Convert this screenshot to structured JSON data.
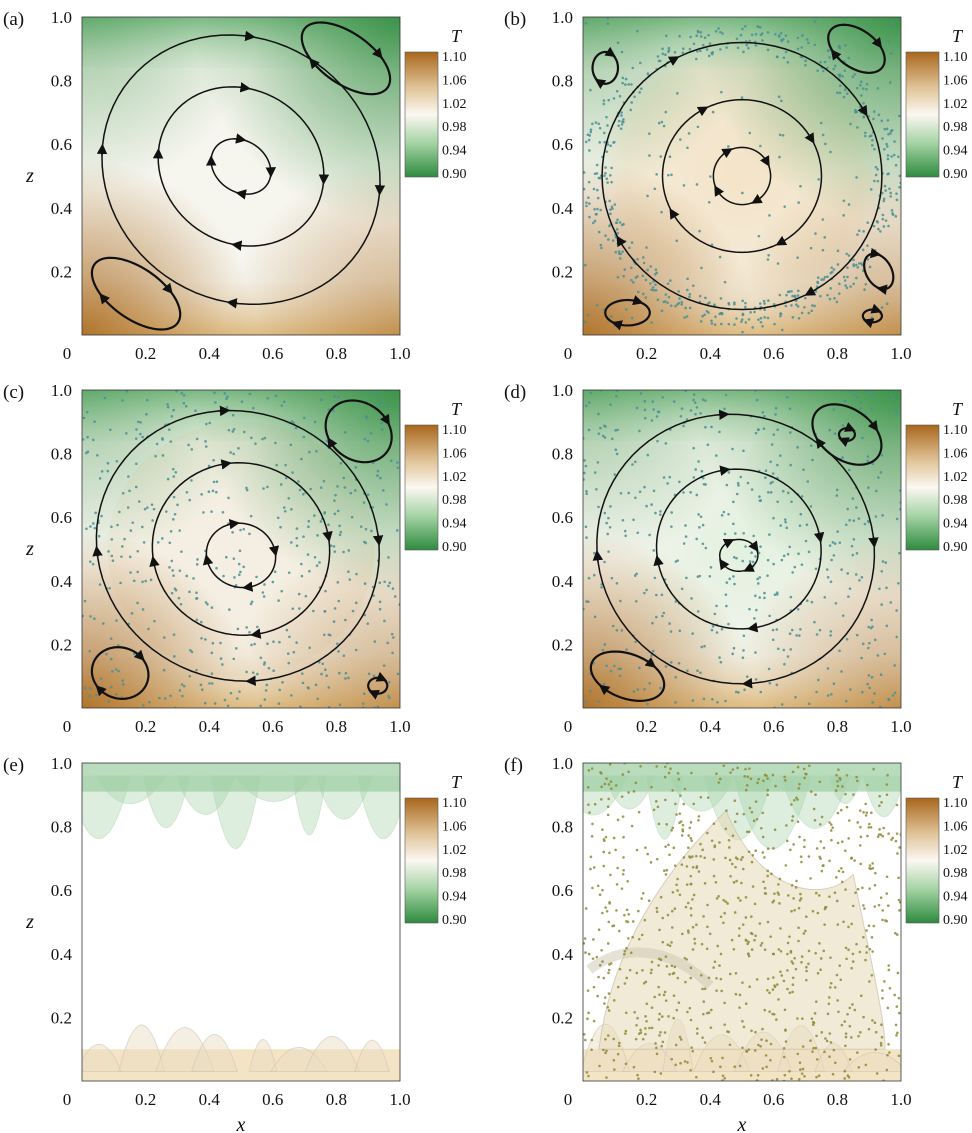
{
  "chart_data": [
    {
      "panel": "(a)",
      "type": "contour",
      "xlim": [
        0,
        1
      ],
      "ylim": [
        0,
        1
      ],
      "x_ticks": [
        "0",
        "0.2",
        "0.4",
        "0.6",
        "0.8",
        "1.0"
      ],
      "y_ticks": [
        "0.2",
        "0.4",
        "0.6",
        "0.8",
        "1.0"
      ],
      "ylabel": "z",
      "xlabel": "",
      "colorbar": {
        "title": "T",
        "ticks": [
          "1.10",
          "1.06",
          "1.02",
          "0.98",
          "0.94",
          "0.90"
        ],
        "range": [
          0.9,
          1.1
        ]
      },
      "particles": false,
      "streamlines": true
    },
    {
      "panel": "(b)",
      "type": "contour",
      "xlim": [
        0,
        1
      ],
      "ylim": [
        0,
        1
      ],
      "x_ticks": [
        "0",
        "0.2",
        "0.4",
        "0.6",
        "0.8",
        "1.0"
      ],
      "y_ticks": [
        "0.2",
        "0.4",
        "0.6",
        "0.8",
        "1.0"
      ],
      "ylabel": "",
      "xlabel": "",
      "colorbar": {
        "title": "T",
        "ticks": [
          "1.10",
          "1.06",
          "1.02",
          "0.98",
          "0.94",
          "0.90"
        ],
        "range": [
          0.9,
          1.1
        ]
      },
      "particles": true,
      "streamlines": true
    },
    {
      "panel": "(c)",
      "type": "contour",
      "xlim": [
        0,
        1
      ],
      "ylim": [
        0,
        1
      ],
      "x_ticks": [
        "0",
        "0.2",
        "0.4",
        "0.6",
        "0.8",
        "1.0"
      ],
      "y_ticks": [
        "0.2",
        "0.4",
        "0.6",
        "0.8",
        "1.0"
      ],
      "ylabel": "z",
      "xlabel": "",
      "colorbar": {
        "title": "T",
        "ticks": [
          "1.10",
          "1.06",
          "1.02",
          "0.98",
          "0.94",
          "0.90"
        ],
        "range": [
          0.9,
          1.1
        ]
      },
      "particles": true,
      "streamlines": true
    },
    {
      "panel": "(d)",
      "type": "contour",
      "xlim": [
        0,
        1
      ],
      "ylim": [
        0,
        1
      ],
      "x_ticks": [
        "0",
        "0.2",
        "0.4",
        "0.6",
        "0.8",
        "1.0"
      ],
      "y_ticks": [
        "0.2",
        "0.4",
        "0.6",
        "0.8",
        "1.0"
      ],
      "ylabel": "",
      "xlabel": "",
      "colorbar": {
        "title": "T",
        "ticks": [
          "1.10",
          "1.06",
          "1.02",
          "0.98",
          "0.94",
          "0.90"
        ],
        "range": [
          0.9,
          1.1
        ]
      },
      "particles": true,
      "streamlines": true
    },
    {
      "panel": "(e)",
      "type": "contour",
      "xlim": [
        0,
        1
      ],
      "ylim": [
        0,
        1
      ],
      "x_ticks": [
        "0",
        "0.2",
        "0.4",
        "0.6",
        "0.8",
        "1.0"
      ],
      "y_ticks": [
        "0.2",
        "0.4",
        "0.6",
        "0.8",
        "1.0"
      ],
      "ylabel": "z",
      "xlabel": "x",
      "colorbar": {
        "title": "T",
        "ticks": [
          "1.10",
          "1.06",
          "1.02",
          "0.98",
          "0.94",
          "0.90"
        ],
        "range": [
          0.9,
          1.1
        ]
      },
      "particles": false,
      "streamlines": false
    },
    {
      "panel": "(f)",
      "type": "contour",
      "xlim": [
        0,
        1
      ],
      "ylim": [
        0,
        1
      ],
      "x_ticks": [
        "0",
        "0.2",
        "0.4",
        "0.6",
        "0.8",
        "1.0"
      ],
      "y_ticks": [
        "0.2",
        "0.4",
        "0.6",
        "0.8",
        "1.0"
      ],
      "ylabel": "",
      "xlabel": "x",
      "colorbar": {
        "title": "T",
        "ticks": [
          "1.10",
          "1.06",
          "1.02",
          "0.98",
          "0.94",
          "0.90"
        ],
        "range": [
          0.9,
          1.1
        ]
      },
      "particles": true,
      "streamlines": false
    }
  ],
  "colors": {
    "cold": "#2e8b3e",
    "neutral": "#ffffff",
    "hot": "#a8671c",
    "particle_teal": "#4a8f94",
    "particle_olive": "#8f8a3a"
  }
}
